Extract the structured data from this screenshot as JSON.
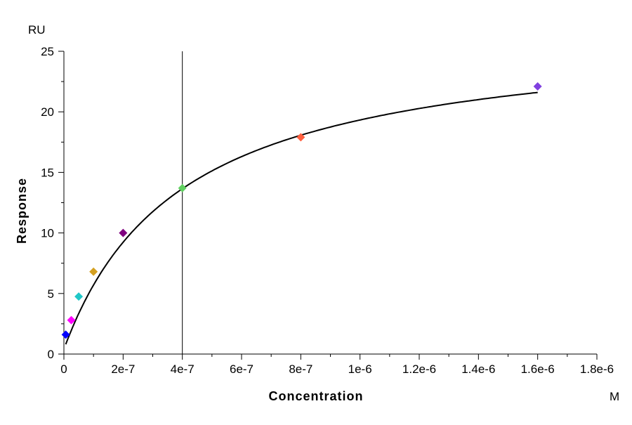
{
  "chart_data": {
    "type": "scatter",
    "xlabel": "Concentration",
    "ylabel": "Response",
    "x_unit": "M",
    "y_unit": "RU",
    "xlim": [
      0,
      1.8e-06
    ],
    "ylim": [
      0,
      25
    ],
    "x_ticks": [
      0,
      2e-07,
      4e-07,
      6e-07,
      8e-07,
      1e-06,
      1.2e-06,
      1.4e-06,
      1.6e-06,
      1.8e-06
    ],
    "x_tick_labels": [
      "0",
      "2e-7",
      "4e-7",
      "6e-7",
      "8e-7",
      "1e-6",
      "1.2e-6",
      "1.4e-6",
      "1.6e-6",
      "1.8e-6"
    ],
    "y_ticks": [
      0,
      5,
      10,
      15,
      20,
      25
    ],
    "y_tick_labels": [
      "0",
      "5",
      "10",
      "15",
      "20",
      "25"
    ],
    "grid": false,
    "points": [
      {
        "x": 6.25e-09,
        "y": 1.6,
        "color": "#0000ff"
      },
      {
        "x": 2.5e-08,
        "y": 2.8,
        "color": "#ff00ff"
      },
      {
        "x": 5e-08,
        "y": 4.75,
        "color": "#20c8c8"
      },
      {
        "x": 1e-07,
        "y": 6.8,
        "color": "#d4a020"
      },
      {
        "x": 2e-07,
        "y": 10.0,
        "color": "#800080"
      },
      {
        "x": 4e-07,
        "y": 13.7,
        "color": "#60d060"
      },
      {
        "x": 8e-07,
        "y": 17.9,
        "color": "#ff6040"
      },
      {
        "x": 1.6e-06,
        "y": 22.1,
        "color": "#8040e0"
      }
    ],
    "fit_curve": {
      "model": "offset + Rmax*x/(KD+x)",
      "Rmax": 26.5,
      "KD": 4e-07,
      "offset": 0.4,
      "x_range": [
        6.25e-09,
        1.6e-06
      ]
    },
    "vertical_line_x": 4e-07
  }
}
